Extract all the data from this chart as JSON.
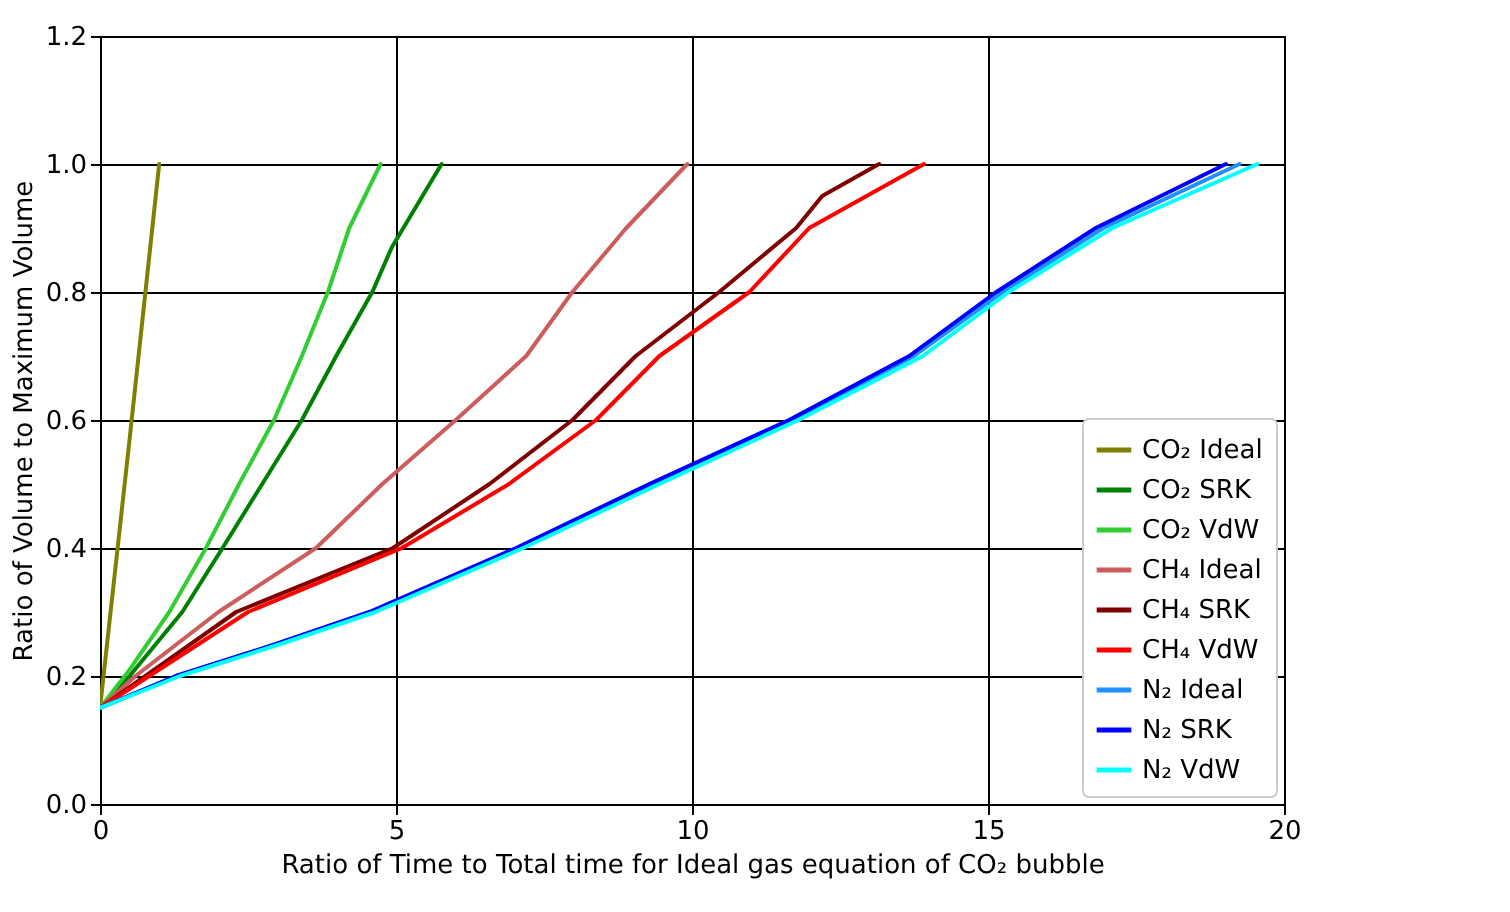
{
  "chart_data": {
    "type": "line",
    "xlabel": "Ratio of Time to Total time for Ideal gas equation of CO₂ bubble",
    "ylabel": "Ratio of Volume to Maximum Volume",
    "xlim": [
      0,
      20
    ],
    "xticks": [
      0,
      5,
      10,
      15,
      20
    ],
    "ylim": [
      0,
      1.2
    ],
    "yticks": [
      {
        "value": 0,
        "label": "0.0"
      },
      0.2,
      0.4,
      0.6,
      0.8,
      {
        "value": 1,
        "label": "1.0"
      },
      {
        "value": 1.2,
        "label": "1.2"
      }
    ],
    "grid": true,
    "legend": "bottom right",
    "line_style": "solid",
    "series": [
      {
        "name": "CO₂ Ideal",
        "color": "#808000",
        "x": [
          0,
          0.5,
          1.0
        ],
        "values": [
          0.15,
          0.57,
          1.0
        ]
      },
      {
        "name": "CO₂ SRK",
        "color": "#008000",
        "x": [
          0,
          0.5,
          1.39,
          2.07,
          2.74,
          3.41,
          3.99,
          4.6,
          4.93,
          5.77
        ],
        "values": [
          0.15,
          0.2,
          0.3,
          0.4,
          0.5,
          0.6,
          0.7,
          0.8,
          0.87,
          1.0
        ]
      },
      {
        "name": "CO₂ VdW",
        "color": "#32cd32",
        "x": [
          0,
          0.5,
          1.17,
          1.79,
          2.35,
          2.94,
          3.41,
          3.85,
          4.21,
          4.74
        ],
        "values": [
          0.15,
          0.21,
          0.3,
          0.4,
          0.5,
          0.6,
          0.7,
          0.8,
          0.9,
          1.0
        ]
      },
      {
        "name": "CH₄ Ideal",
        "color": "#cd5c5c",
        "x": [
          0,
          0.6,
          2.0,
          3.65,
          4.77,
          6.01,
          7.2,
          7.98,
          8.89,
          9.92
        ],
        "values": [
          0.15,
          0.2,
          0.3,
          0.4,
          0.5,
          0.6,
          0.7,
          0.8,
          0.9,
          1.0
        ]
      },
      {
        "name": "CH₄ SRK",
        "color": "#800000",
        "x": [
          0,
          2.3,
          4.95,
          6.58,
          7.98,
          9.05,
          10.46,
          11.76,
          12.2,
          13.16
        ],
        "values": [
          0.15,
          0.3,
          0.4,
          0.5,
          0.6,
          0.7,
          0.8,
          0.9,
          0.95,
          1.0
        ]
      },
      {
        "name": "CH₄ VdW",
        "color": "#ff0000",
        "x": [
          0,
          2.5,
          5.1,
          6.91,
          8.38,
          9.45,
          10.97,
          11.98,
          13.92
        ],
        "values": [
          0.15,
          0.3,
          0.4,
          0.5,
          0.6,
          0.7,
          0.8,
          0.9,
          1.0
        ]
      },
      {
        "name": "N₂ Ideal",
        "color": "#1e90ff",
        "x": [
          0,
          1.3,
          3.0,
          4.6,
          7.08,
          9.35,
          11.7,
          13.75,
          15.25,
          16.95,
          19.25
        ],
        "values": [
          0.15,
          0.2,
          0.25,
          0.3,
          0.4,
          0.5,
          0.6,
          0.7,
          0.8,
          0.9,
          1.0
        ]
      },
      {
        "name": "N₂ SRK",
        "color": "#0000ff",
        "x": [
          0,
          1.28,
          2.97,
          4.55,
          7.03,
          9.28,
          11.64,
          13.67,
          15.14,
          16.82,
          19.02
        ],
        "values": [
          0.15,
          0.2,
          0.25,
          0.3,
          0.4,
          0.5,
          0.6,
          0.7,
          0.8,
          0.9,
          1.0
        ]
      },
      {
        "name": "N₂ VdW",
        "color": "#00ffff",
        "x": [
          0,
          1.35,
          3.05,
          4.65,
          7.15,
          9.45,
          11.8,
          13.9,
          15.35,
          17.1,
          19.55
        ],
        "values": [
          0.15,
          0.2,
          0.25,
          0.3,
          0.4,
          0.5,
          0.6,
          0.7,
          0.8,
          0.9,
          1.0
        ]
      }
    ]
  }
}
